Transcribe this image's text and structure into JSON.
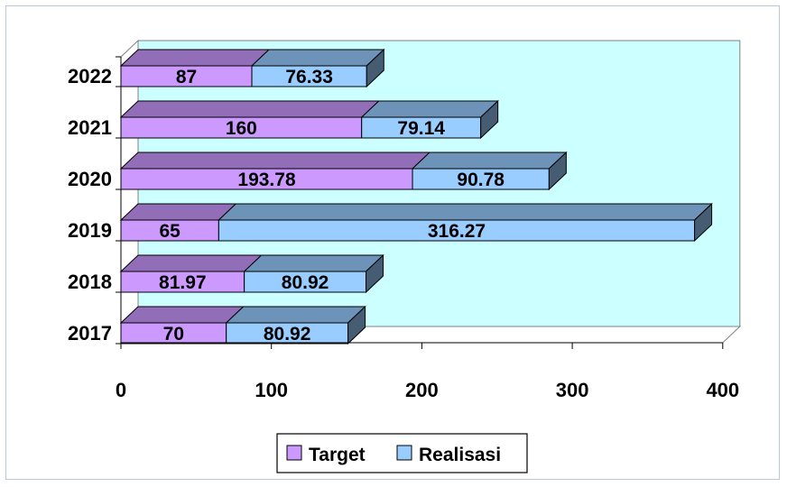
{
  "chart_data": {
    "type": "bar",
    "orientation": "horizontal",
    "style": "3d-stacked",
    "categories": [
      "2017",
      "2018",
      "2019",
      "2020",
      "2021",
      "2022"
    ],
    "series": [
      {
        "name": "Target",
        "values": [
          70,
          81.97,
          65,
          193.78,
          160,
          87
        ],
        "labels": [
          "70",
          "81.97",
          "65",
          "193.78",
          "160",
          "87"
        ],
        "color": "#cc99ff"
      },
      {
        "name": "Realisasi",
        "values": [
          80.92,
          80.92,
          316.27,
          90.78,
          79.14,
          76.33
        ],
        "labels": [
          "80.92",
          "80.92",
          "316.27",
          "90.78",
          "79.14",
          "76.33"
        ],
        "color": "#99ccff"
      }
    ],
    "x_ticks": [
      "0",
      "100",
      "200",
      "300",
      "400"
    ],
    "xlim": [
      0,
      400
    ],
    "legend_position": "bottom",
    "wall_color": "#ccffff",
    "grid": false
  }
}
